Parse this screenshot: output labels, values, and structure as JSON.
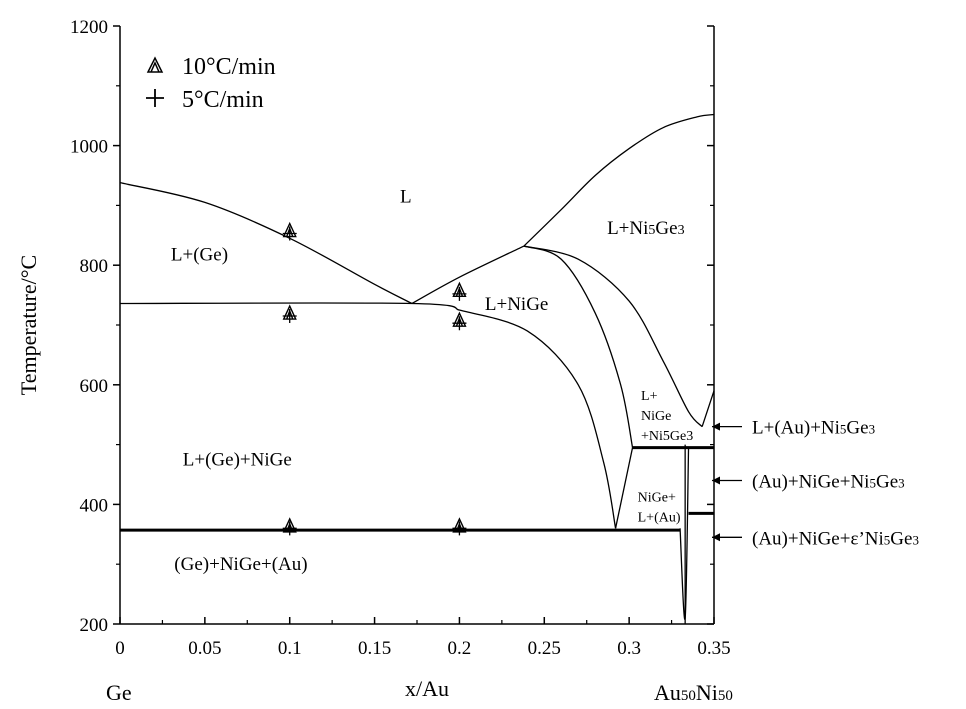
{
  "chart_data": {
    "type": "line",
    "title": "",
    "xlabel": "x/Au",
    "ylabel": "Temperature/°C",
    "xlim": [
      0,
      0.35
    ],
    "ylim": [
      200,
      1200
    ],
    "x_ticks": [
      0,
      0.05,
      0.1,
      0.15,
      0.2,
      0.25,
      0.3,
      0.35
    ],
    "x_tick_labels": [
      "0",
      "0.05",
      "0.1",
      "0.15",
      "0.2",
      "0.25",
      "0.3",
      "0.35"
    ],
    "y_ticks": [
      200,
      400,
      600,
      800,
      1000,
      1200
    ],
    "y_tick_labels": [
      "200",
      "400",
      "600",
      "800",
      "1000",
      "1200"
    ],
    "end_labels": {
      "left": "Ge",
      "right_main": "Au",
      "right_sub1": "50",
      "right_main2": "Ni",
      "right_sub2": "50"
    },
    "legend": {
      "placement": "top-left",
      "entries": [
        {
          "symbol": "triangle",
          "label": "10°C/min"
        },
        {
          "symbol": "plus",
          "label": "5°C/min"
        }
      ]
    },
    "series": [
      {
        "name": "10°C/min",
        "marker": "triangle",
        "points": [
          [
            0.1,
            858
          ],
          [
            0.1,
            720
          ],
          [
            0.1,
            364
          ],
          [
            0.2,
            758
          ],
          [
            0.2,
            708
          ],
          [
            0.2,
            364
          ]
        ]
      },
      {
        "name": "5°C/min",
        "marker": "plus",
        "points": [
          [
            0.1,
            853
          ],
          [
            0.1,
            715
          ],
          [
            0.1,
            360
          ],
          [
            0.2,
            752
          ],
          [
            0.2,
            703
          ],
          [
            0.2,
            360
          ]
        ]
      }
    ],
    "phase_lines": [
      {
        "points": [
          [
            0,
            938
          ],
          [
            0.05,
            905
          ],
          [
            0.1,
            845
          ],
          [
            0.15,
            768
          ],
          [
            0.172,
            736
          ]
        ]
      },
      {
        "points": [
          [
            0.172,
            736
          ],
          [
            0.2,
            780
          ],
          [
            0.238,
            832
          ]
        ]
      },
      {
        "points": [
          [
            0.238,
            832
          ],
          [
            0.26,
            893
          ],
          [
            0.28,
            950
          ],
          [
            0.3,
            995
          ],
          [
            0.32,
            1030
          ],
          [
            0.34,
            1048
          ],
          [
            0.35,
            1052
          ]
        ]
      },
      {
        "points": [
          [
            0,
            736
          ],
          [
            0.172,
            736
          ],
          [
            0.2,
            725
          ]
        ]
      },
      {
        "points": [
          [
            0.2,
            725
          ],
          [
            0.24,
            690
          ],
          [
            0.27,
            600
          ],
          [
            0.285,
            470
          ],
          [
            0.292,
            360
          ]
        ]
      },
      {
        "points": [
          [
            0.238,
            832
          ],
          [
            0.26,
            810
          ],
          [
            0.28,
            720
          ],
          [
            0.295,
            600
          ],
          [
            0.302,
            495
          ]
        ]
      },
      {
        "points": [
          [
            0.238,
            832
          ],
          [
            0.27,
            810
          ],
          [
            0.3,
            740
          ],
          [
            0.32,
            640
          ],
          [
            0.335,
            555
          ],
          [
            0.343,
            530
          ]
        ]
      },
      {
        "points": [
          [
            0.343,
            530
          ],
          [
            0.35,
            590
          ]
        ]
      },
      {
        "points": [
          [
            0.292,
            360
          ],
          [
            0.302,
            495
          ]
        ]
      },
      {
        "points": [
          [
            0.33,
            360
          ],
          [
            0.333,
            210
          ],
          [
            0.335,
            495
          ]
        ]
      }
    ],
    "invariant_lines": [
      {
        "x": [
          0,
          0.33
        ],
        "y": 357
      },
      {
        "x": [
          0.302,
          0.35
        ],
        "y": 495
      },
      {
        "x": [
          0.335,
          0.35
        ],
        "y": 385
      }
    ],
    "vertical_lines": [
      {
        "x": 0.333,
        "y": [
          200,
          500
        ]
      }
    ],
    "regions": [
      {
        "label": "L",
        "x": 0.165,
        "y": 905
      },
      {
        "label": "L+(Ge)",
        "x": 0.03,
        "y": 808
      },
      {
        "label": "L+NiGe",
        "x": 0.215,
        "y": 725
      },
      {
        "label_main": "L+Ni",
        "sub1": "5",
        "mid": "Ge",
        "sub2": "3",
        "x": 0.287,
        "y": 852
      },
      {
        "label": "L+(Ge)+NiGe",
        "x": 0.037,
        "y": 465
      },
      {
        "label": "(Ge)+NiGe+(Au)",
        "x": 0.032,
        "y": 290
      }
    ],
    "small_regions": [
      {
        "lines": [
          "L+",
          "NiGe",
          "+Ni5Ge3"
        ],
        "x": 0.307,
        "y": 575
      },
      {
        "lines": [
          "NiGe+",
          "L+(Au)"
        ],
        "x": 0.305,
        "y": 405
      }
    ],
    "annotations": [
      {
        "main": "L+(Au)+Ni",
        "sub1": "5",
        "mid": "Ge",
        "sub2": "3",
        "target_y": 530
      },
      {
        "main": "(Au)+NiGe+Ni",
        "sub1": "5",
        "mid": "Ge",
        "sub2": "3",
        "target_y": 440
      },
      {
        "main": "(Au)+NiGe+ε’Ni",
        "sub1": "5",
        "mid": "Ge",
        "sub2": "3",
        "target_y": 345
      }
    ]
  }
}
